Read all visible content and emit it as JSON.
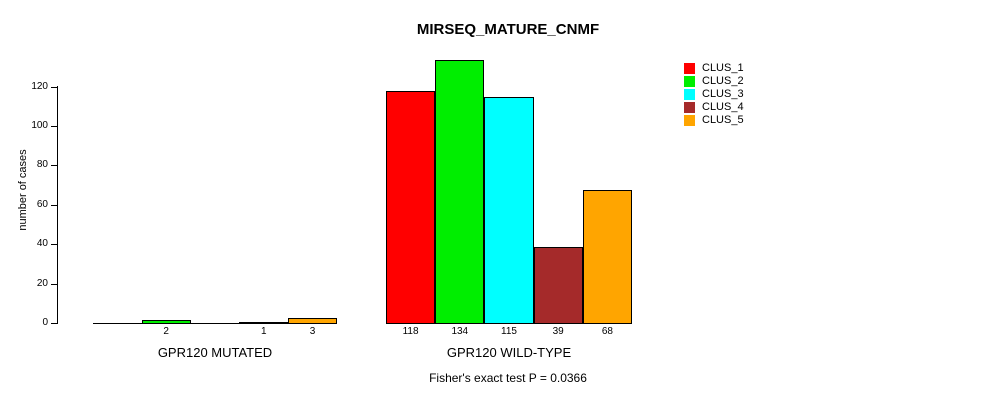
{
  "chart_data": {
    "type": "bar",
    "title": "MIRSEQ_MATURE_CNMF",
    "ylabel": "number of cases",
    "xlabel": "",
    "annotation": "Fisher's exact test P = 0.0366",
    "yticks": [
      0,
      20,
      40,
      60,
      80,
      100,
      120
    ],
    "axis_range": [
      0,
      120
    ],
    "grid": false,
    "legend_position": "top-right",
    "series": [
      {
        "name": "CLUS_1",
        "color": "#FF0000"
      },
      {
        "name": "CLUS_2",
        "color": "#00EE00"
      },
      {
        "name": "CLUS_3",
        "color": "#00FFFF"
      },
      {
        "name": "CLUS_4",
        "color": "#A52A2A"
      },
      {
        "name": "CLUS_5",
        "color": "#FFA500"
      }
    ],
    "groups": [
      {
        "label": "GPR120 MUTATED",
        "values": [
          0,
          2,
          0,
          1,
          3
        ],
        "value_labels": [
          "",
          "2",
          "",
          "1",
          "3"
        ]
      },
      {
        "label": "GPR120 WILD-TYPE",
        "values": [
          118,
          134,
          115,
          39,
          68
        ],
        "value_labels": [
          "118",
          "134",
          "115",
          "39",
          "68"
        ]
      }
    ]
  }
}
